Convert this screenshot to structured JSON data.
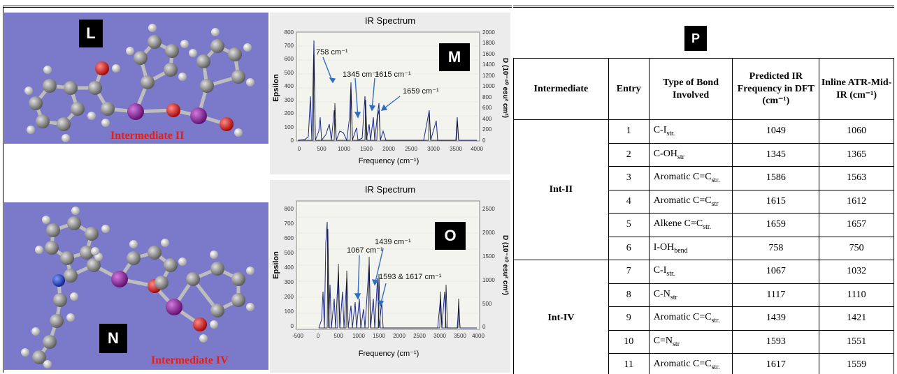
{
  "panels": {
    "L": {
      "label": "L",
      "caption": "Intermediate II"
    },
    "N": {
      "label": "N",
      "caption": "Intermediate IV"
    },
    "M": {
      "label": "M",
      "title": "IR Spectrum",
      "ylabel_left": "Epsilon",
      "ylabel_right": "D (10⁻⁴⁰ esu² cm²)",
      "xlabel": "Frequency (cm⁻¹)",
      "xticks": [
        "0",
        "500",
        "1000",
        "1500",
        "2000",
        "2500",
        "3000",
        "3500",
        "4000"
      ],
      "yticks_left": [
        "0",
        "100",
        "200",
        "300",
        "400",
        "500",
        "600",
        "700",
        "800"
      ],
      "yticks_right": [
        "0",
        "200",
        "400",
        "600",
        "800",
        "1000",
        "1200",
        "1400",
        "1600",
        "1800",
        "2000"
      ],
      "annotations": [
        "758 cm⁻¹",
        "1345 cm⁻¹",
        "1615 cm⁻¹",
        "1659 cm⁻¹"
      ]
    },
    "O": {
      "label": "O",
      "title": "IR Spectrum",
      "ylabel_left": "Epsilon",
      "ylabel_right": "D (10⁻⁴⁰ esu² cm²)",
      "xlabel": "Frequency (cm⁻¹)",
      "xticks": [
        "-500",
        "0",
        "500",
        "1000",
        "1500",
        "2000",
        "2500",
        "3000",
        "3500",
        "4000"
      ],
      "yticks_left": [
        "0",
        "100",
        "200",
        "300",
        "400",
        "500",
        "600",
        "700",
        "800"
      ],
      "yticks_right": [
        "0",
        "500",
        "1000",
        "1500",
        "2000",
        "2500"
      ],
      "annotations": [
        "1067 cm⁻¹",
        "1439 cm⁻¹",
        "1593 & 1617 cm⁻¹"
      ]
    },
    "P": {
      "label": "P"
    }
  },
  "table": {
    "headers": [
      "Intermediate",
      "Entry",
      "Type of Bond Involved",
      "Predicted IR Frequency in DFT (cm⁻¹)",
      "Inline ATR-Mid-IR (cm⁻¹)"
    ],
    "groups": [
      {
        "name": "Int-II",
        "rows": [
          {
            "entry": "1",
            "bond": "C-I",
            "sub": "str.",
            "dft": "1049",
            "atr": "1060"
          },
          {
            "entry": "2",
            "bond": "C-OH",
            "sub": "str",
            "dft": "1345",
            "atr": "1365"
          },
          {
            "entry": "3",
            "bond": "Aromatic C=C",
            "sub": "str.",
            "dft": "1586",
            "atr": "1563"
          },
          {
            "entry": "4",
            "bond": "Aromatic C=C",
            "sub": "str",
            "dft": "1615",
            "atr": "1612"
          },
          {
            "entry": "5",
            "bond": "Alkene C=C",
            "sub": "str.",
            "dft": "1659",
            "atr": "1657"
          },
          {
            "entry": "6",
            "bond": "I-OH",
            "sub": "bend",
            "dft": "758",
            "atr": "750"
          }
        ]
      },
      {
        "name": "Int-IV",
        "rows": [
          {
            "entry": "7",
            "bond": "C-I",
            "sub": "str.",
            "dft": "1067",
            "atr": "1032"
          },
          {
            "entry": "8",
            "bond": "C-N",
            "sub": "str",
            "dft": "1117",
            "atr": "1110"
          },
          {
            "entry": "9",
            "bond": "Aromatic C=C",
            "sub": "str.",
            "dft": "1439",
            "atr": "1421"
          },
          {
            "entry": "10",
            "bond": "C=N",
            "sub": "str",
            "dft": "1593",
            "atr": "1551"
          },
          {
            "entry": "11",
            "bond": "Aromatic C=C",
            "sub": "str.",
            "dft": "1617",
            "atr": "1559"
          }
        ]
      }
    ]
  },
  "colors": {
    "molecule_bg": "#7b79c9",
    "caption": "#e0201b",
    "spectrum_line": "#1f2a8c",
    "annotation_arrow": "#2e6fc4",
    "iodine": "#8b1a9a",
    "oxygen": "#e01010",
    "nitrogen": "#1a3fd6",
    "carbon": "#8a8a8a",
    "hydrogen": "#e8e8e8"
  }
}
